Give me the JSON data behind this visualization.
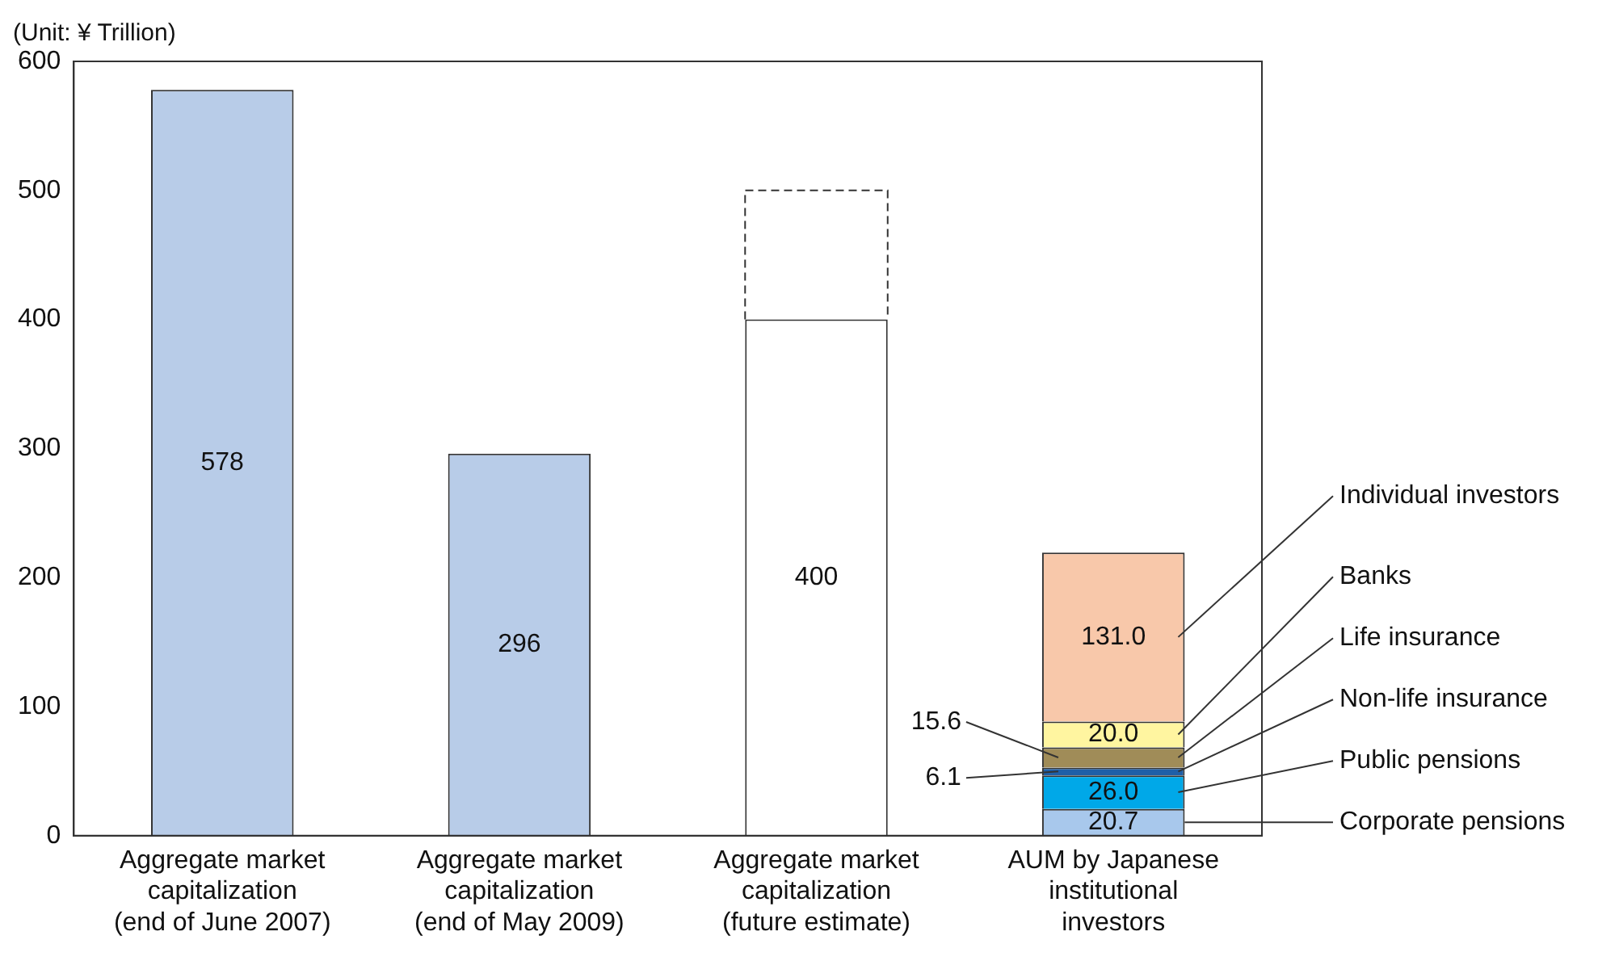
{
  "chart_data": {
    "type": "bar",
    "stacked": true,
    "ylabel": "(Unit: ¥ Trillion)",
    "categories": [
      "Aggregate market capitalization (end of June 2007)",
      "Aggregate market capitalization (end of May 2009)",
      "Aggregate market capitalization (future estimate)",
      "AUM by Japanese institutional investors"
    ],
    "series": [
      {
        "colors": [
          "#b8cce8",
          "#b8cce8",
          "#ffffff",
          null
        ],
        "values": [
          578,
          296,
          400,
          null
        ],
        "value_labels": [
          "578",
          "296",
          "400",
          null
        ]
      },
      {
        "color": "#ffffff",
        "line_style": "dashed",
        "values": [
          null,
          null,
          100,
          null
        ]
      },
      {
        "name": "Corporate pensions",
        "color": "#a8c8ec",
        "values": [
          null,
          null,
          null,
          20.7
        ],
        "value_labels": [
          null,
          null,
          null,
          "20.7"
        ]
      },
      {
        "name": "Public pensions",
        "color": "#00a8e8",
        "values": [
          null,
          null,
          null,
          26.0
        ],
        "value_labels": [
          null,
          null,
          null,
          "26.0"
        ]
      },
      {
        "name": "Non-life insurance",
        "color": "#1f5fa8",
        "values": [
          null,
          null,
          null,
          6.1
        ],
        "value_labels": [
          null,
          null,
          null,
          "6.1"
        ]
      },
      {
        "name": "Life insurance",
        "color": "#a08c58",
        "values": [
          null,
          null,
          null,
          15.6
        ],
        "value_labels": [
          null,
          null,
          null,
          "15.6"
        ]
      },
      {
        "name": "Banks",
        "color": "#fff5a0",
        "values": [
          null,
          null,
          null,
          20.0
        ],
        "value_labels": [
          null,
          null,
          null,
          "20.0"
        ]
      },
      {
        "name": "Individual investors",
        "color": "#f8c8aa",
        "values": [
          null,
          null,
          null,
          131.0
        ],
        "value_labels": [
          null,
          null,
          null,
          "131.0"
        ]
      }
    ],
    "ylim": [
      0,
      600
    ],
    "yticks": [
      0,
      100,
      200,
      300,
      400,
      500,
      600
    ]
  }
}
